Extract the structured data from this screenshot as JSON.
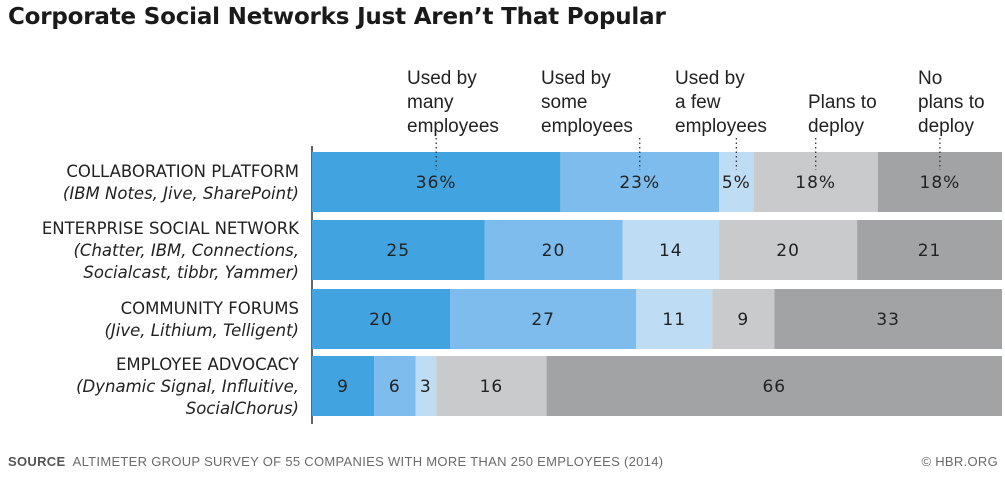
{
  "title": "Corporate Social Networks Just Aren’t That Popular",
  "footer": {
    "source_label": "SOURCE",
    "source_text": "ALTIMETER GROUP SURVEY OF 55 COMPANIES WITH MORE THAN 250 EMPLOYEES (2014)",
    "credit": "© HBR.ORG"
  },
  "chart_data": {
    "type": "bar",
    "orientation": "horizontal",
    "stacked": true,
    "percent_scale": true,
    "xlim": [
      0,
      100
    ],
    "series": [
      {
        "name": [
          "Used by",
          "many",
          "employees"
        ],
        "color": "#41a3df"
      },
      {
        "name": [
          "Used by",
          "some",
          "employees"
        ],
        "color": "#7dbcec"
      },
      {
        "name": [
          "Used by",
          "a few",
          "employees"
        ],
        "color": "#bfdcf5"
      },
      {
        "name": [
          "Plans to",
          "deploy"
        ],
        "color": "#c9cacc"
      },
      {
        "name": [
          "No",
          "plans to",
          "deploy"
        ],
        "color": "#a2a3a5"
      }
    ],
    "categories": [
      {
        "name": "COLLABORATION PLATFORM",
        "examples": [
          "(IBM Notes, Jive, SharePoint)"
        ],
        "values": [
          36,
          23,
          5,
          18,
          18
        ],
        "labels": [
          "36%",
          "23%",
          "5%",
          "18%",
          "18%"
        ]
      },
      {
        "name": "ENTERPRISE SOCIAL NETWORK",
        "examples": [
          "(Chatter, IBM, Connections,",
          "Socialcast, tibbr, Yammer)"
        ],
        "values": [
          25,
          20,
          14,
          20,
          21
        ],
        "labels": [
          "25",
          "20",
          "14",
          "20",
          "21"
        ]
      },
      {
        "name": "COMMUNITY FORUMS",
        "examples": [
          "(Jive, Lithium, Telligent)"
        ],
        "values": [
          20,
          27,
          11,
          9,
          33
        ],
        "labels": [
          "20",
          "27",
          "11",
          "9",
          "33"
        ]
      },
      {
        "name": "EMPLOYEE ADVOCACY",
        "examples": [
          "(Dynamic Signal, Influitive,",
          "SocialChorus)"
        ],
        "values": [
          9,
          6,
          3,
          16,
          66
        ],
        "labels": [
          "9",
          "6",
          "3",
          "16",
          "66"
        ]
      }
    ]
  }
}
